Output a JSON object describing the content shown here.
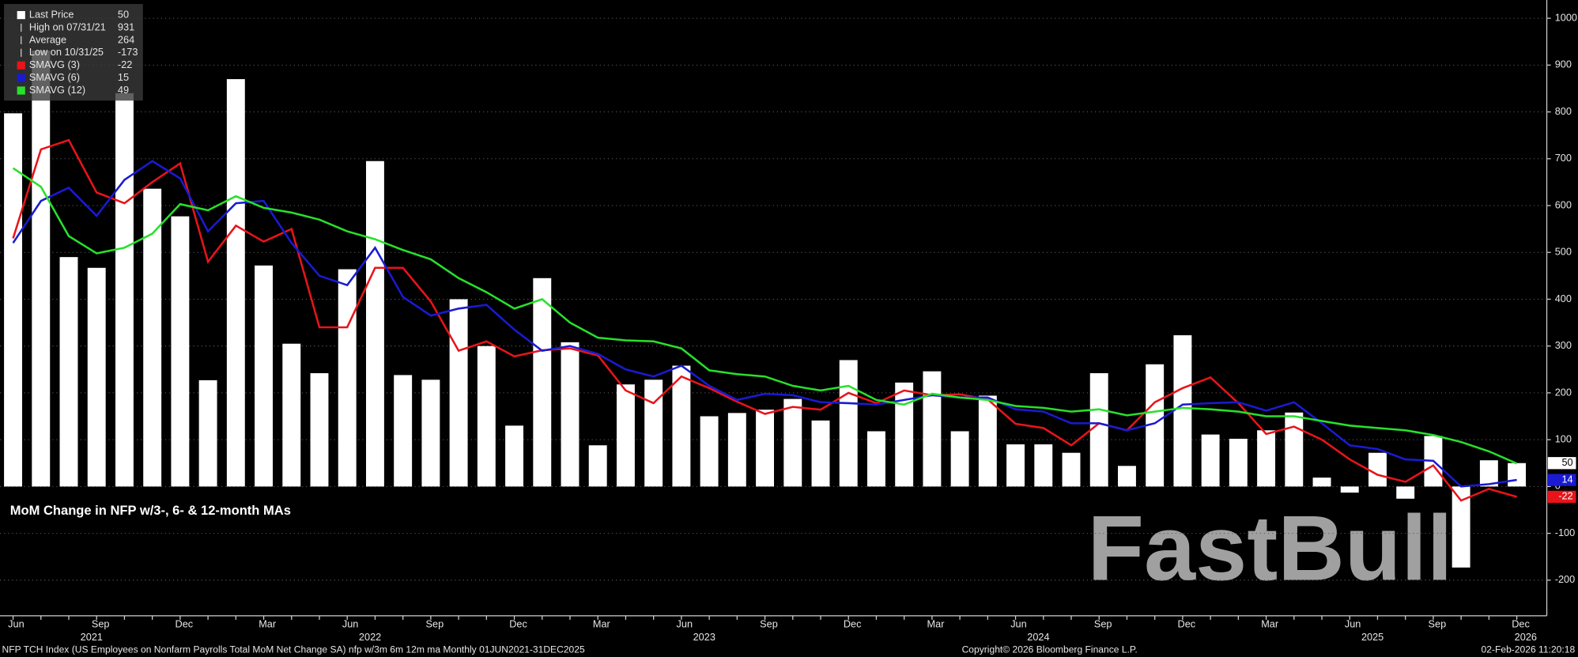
{
  "chart_data": {
    "type": "bar-line",
    "title": "MoM Change in NFP w/3-, 6- & 12-month MAs",
    "watermark": "FastBull",
    "footer_left": "NFP TCH Index (US Employees on Nonfarm Payrolls Total MoM Net Change SA) nfp w/3m 6m 12m ma Monthly 01JUN2021-31DEC2025",
    "footer_center": "Copyright© 2026 Bloomberg Finance L.P.",
    "footer_right": "02-Feb-2026 11:20:18",
    "categories": [
      "Jun",
      null,
      null,
      "Sep",
      null,
      null,
      "Dec",
      null,
      null,
      "Mar",
      null,
      null,
      "Jun",
      null,
      null,
      "Sep",
      null,
      null,
      "Dec",
      null,
      null,
      "Mar",
      null,
      null,
      "Jun",
      null,
      null,
      "Sep",
      null,
      null,
      "Dec",
      null,
      null,
      "Mar",
      null,
      null,
      "Jun",
      null,
      null,
      "Sep",
      null,
      null,
      "Dec",
      null,
      null,
      "Mar",
      null,
      null,
      "Jun",
      null,
      null,
      "Sep",
      null,
      null,
      "Dec"
    ],
    "years": [
      "2021",
      "2022",
      "2023",
      "2024",
      "2025",
      "2026"
    ],
    "legend": [
      {
        "label": "Last Price",
        "value": "50"
      },
      {
        "label": "High on 07/31/21",
        "value": "931"
      },
      {
        "label": "Average",
        "value": "264"
      },
      {
        "label": "Low on 10/31/25",
        "value": "-173"
      },
      {
        "label": "SMAVG (3)",
        "value": "-22"
      },
      {
        "label": "SMAVG (6)",
        "value": "15"
      },
      {
        "label": "SMAVG (12)",
        "value": "49"
      }
    ],
    "bars": {
      "color": "#ffffff",
      "values": [
        797,
        931,
        490,
        467,
        840,
        636,
        577,
        227,
        870,
        472,
        305,
        242,
        464,
        695,
        238,
        228,
        400,
        300,
        130,
        445,
        308,
        88,
        218,
        228,
        258,
        150,
        157,
        164,
        187,
        141,
        270,
        118,
        222,
        246,
        118,
        194,
        90,
        90,
        72,
        242,
        44,
        261,
        323,
        111,
        102,
        120,
        158,
        19,
        -13,
        72,
        -26,
        108,
        -173,
        56,
        50
      ]
    },
    "series": [
      {
        "name": "SMAVG (3)",
        "color": "#e8141a",
        "values": [
          530,
          720,
          740,
          628,
          605,
          650,
          690,
          480,
          557,
          523,
          550,
          340,
          340,
          467,
          467,
          395,
          290,
          310,
          278,
          291,
          295,
          280,
          205,
          178,
          235,
          210,
          181,
          155,
          170,
          164,
          200,
          178,
          205,
          195,
          197,
          186,
          134,
          125,
          88,
          135,
          120,
          180,
          210,
          233,
          178,
          112,
          128,
          100,
          58,
          25,
          10,
          45,
          -30,
          -5,
          -22
        ]
      },
      {
        "name": "SMAVG (6)",
        "color": "#1a1ad2",
        "values": [
          520,
          610,
          638,
          578,
          655,
          695,
          658,
          545,
          605,
          610,
          520,
          450,
          430,
          510,
          405,
          365,
          380,
          388,
          335,
          290,
          300,
          283,
          250,
          235,
          258,
          215,
          185,
          198,
          195,
          180,
          178,
          175,
          185,
          195,
          190,
          190,
          165,
          160,
          135,
          135,
          120,
          135,
          175,
          178,
          180,
          162,
          180,
          135,
          88,
          80,
          58,
          55,
          0,
          5,
          14
        ]
      },
      {
        "name": "SMAVG (12)",
        "color": "#27e02b",
        "values": [
          680,
          640,
          535,
          498,
          510,
          540,
          603,
          590,
          620,
          595,
          585,
          570,
          545,
          528,
          505,
          485,
          445,
          415,
          380,
          400,
          350,
          318,
          312,
          310,
          295,
          248,
          240,
          235,
          215,
          205,
          215,
          185,
          175,
          198,
          190,
          185,
          172,
          168,
          160,
          165,
          152,
          160,
          168,
          165,
          160,
          150,
          150,
          140,
          130,
          125,
          120,
          110,
          95,
          75,
          49
        ]
      }
    ],
    "ylim": [
      -276,
      1039
    ],
    "yticks": [
      -200,
      -100,
      0,
      100,
      200,
      300,
      400,
      500,
      600,
      700,
      800,
      900,
      1000
    ],
    "grid": true
  }
}
